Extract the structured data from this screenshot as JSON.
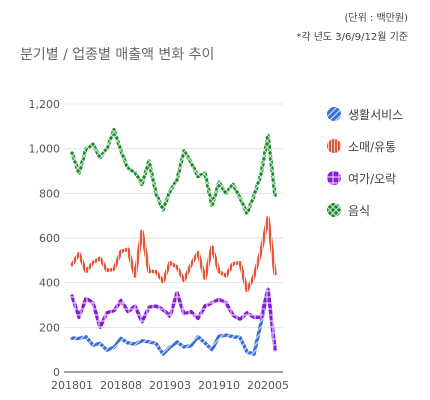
{
  "unit_note": "(단위 : 백만원)",
  "basis_note": "*각 년도 3/6/9/12월 기준",
  "chart_data": {
    "type": "line",
    "title": "분기별 / 업종별 매출액 변화 추이",
    "xlabel": "",
    "ylabel": "",
    "ylim": [
      0,
      1200
    ],
    "yticks": [
      0,
      200,
      400,
      600,
      800,
      1000,
      1200
    ],
    "ytick_labels": [
      "0",
      "200",
      "400",
      "600",
      "800",
      "1,000",
      "1,200"
    ],
    "xtick_labels": [
      "201801",
      "201808",
      "201903",
      "201910",
      "202005"
    ],
    "xtick_positions": [
      0,
      7,
      14,
      21,
      28
    ],
    "x_count": 30,
    "grid": "horizontal",
    "legend": "right",
    "series": [
      {
        "name": "생활서비스",
        "color": "#3b6fd1",
        "pattern": "diagonal-lines",
        "values": [
          152,
          150,
          158,
          120,
          128,
          98,
          110,
          150,
          130,
          125,
          140,
          135,
          128,
          80,
          112,
          135,
          112,
          118,
          158,
          130,
          100,
          160,
          165,
          158,
          155,
          90,
          80,
          220,
          370,
          100
        ]
      },
      {
        "name": "소매/유통",
        "color": "#e0492a",
        "pattern": "vertical-lines",
        "values": [
          480,
          530,
          450,
          490,
          510,
          455,
          460,
          540,
          550,
          430,
          630,
          450,
          450,
          405,
          490,
          470,
          410,
          480,
          535,
          420,
          560,
          450,
          430,
          485,
          490,
          365,
          430,
          540,
          690,
          440
        ]
      },
      {
        "name": "여가/오락",
        "color": "#8a1ad6",
        "pattern": "grid",
        "values": [
          340,
          245,
          330,
          310,
          200,
          265,
          275,
          320,
          270,
          295,
          225,
          290,
          295,
          280,
          250,
          355,
          260,
          270,
          240,
          295,
          310,
          325,
          310,
          255,
          235,
          265,
          245,
          245,
          370,
          100
        ]
      },
      {
        "name": "음식",
        "color": "#138a22",
        "pattern": "crosshatch",
        "values": [
          980,
          890,
          1000,
          1020,
          960,
          1000,
          1085,
          990,
          910,
          895,
          840,
          945,
          800,
          725,
          810,
          860,
          990,
          940,
          875,
          890,
          745,
          850,
          800,
          840,
          780,
          710,
          790,
          885,
          1060,
          790
        ]
      }
    ]
  }
}
